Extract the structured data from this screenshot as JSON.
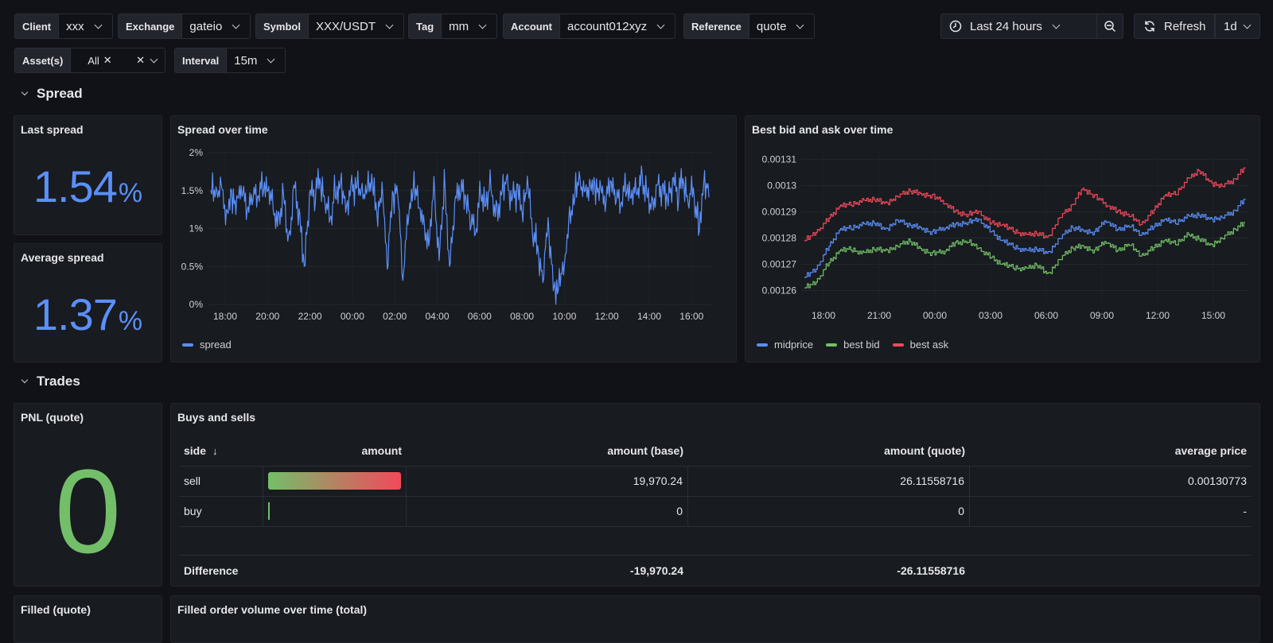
{
  "variables": [
    {
      "label": "Client",
      "value": "xxx"
    },
    {
      "label": "Exchange",
      "value": "gateio"
    },
    {
      "label": "Symbol",
      "value": "XXX/USDT"
    },
    {
      "label": "Tag",
      "value": "mm"
    },
    {
      "label": "Account",
      "value": "account012xyz"
    },
    {
      "label": "Reference",
      "value": "quote"
    }
  ],
  "assets": {
    "label": "Asset(s)",
    "chip": "All"
  },
  "interval": {
    "label": "Interval",
    "value": "15m"
  },
  "time_picker": {
    "label": "Last 24 hours"
  },
  "refresh": {
    "label": "Refresh",
    "interval": "1d"
  },
  "sections": {
    "spread": "Spread",
    "trades": "Trades"
  },
  "panels": {
    "last_spread": {
      "title": "Last spread",
      "value": "1.54",
      "unit": "%"
    },
    "avg_spread": {
      "title": "Average spread",
      "value": "1.37",
      "unit": "%"
    },
    "spread_chart": {
      "title": "Spread over time",
      "legend": "spread"
    },
    "bidask_chart": {
      "title": "Best bid and ask over time",
      "legend": [
        "midprice",
        "best bid",
        "best ask"
      ]
    },
    "pnl": {
      "title": "PNL (quote)",
      "value": "0"
    },
    "buys_sells": {
      "title": "Buys and sells",
      "columns": [
        "side",
        "amount",
        "amount (base)",
        "amount (quote)",
        "average price"
      ],
      "rows": [
        {
          "side": "sell",
          "amount_gauge": 1.0,
          "base": "19,970.24",
          "quote": "26.11558716",
          "avg": "0.00130773"
        },
        {
          "side": "buy",
          "amount_gauge": 0.0,
          "base": "0",
          "quote": "0",
          "avg": "-"
        }
      ],
      "footer": {
        "label": "Difference",
        "base": "-19,970.24",
        "quote": "-26.11558716"
      }
    },
    "filled_quote": {
      "title": "Filled (quote)"
    },
    "filled_volume": {
      "title": "Filled order volume over time (total)"
    }
  },
  "colors": {
    "blue": "#5b8ff9",
    "green": "#73bf69",
    "red": "#f2495c",
    "bg": "#111217",
    "panel": "#181b1f"
  },
  "chart_data": [
    {
      "type": "line",
      "title": "Spread over time",
      "x_ticks": [
        "18:00",
        "20:00",
        "22:00",
        "00:00",
        "02:00",
        "04:00",
        "06:00",
        "08:00",
        "10:00",
        "12:00",
        "14:00",
        "16:00"
      ],
      "y_ticks": [
        "0%",
        "0.5%",
        "1%",
        "1.5%",
        "2%"
      ],
      "ylim": [
        0,
        2
      ],
      "series": [
        {
          "name": "spread",
          "color": "#5b8ff9",
          "values": [
            1.5,
            1.4,
            1.6,
            1.1,
            1.5,
            1.3,
            1.6,
            1.2,
            1.5,
            1.4,
            1.6,
            1.5,
            1.3,
            1.0,
            1.5,
            0.7,
            1.6,
            1.2,
            0.5,
            1.4,
            1.5,
            1.6,
            1.4,
            1.1,
            1.5,
            1.6,
            1.3,
            1.5,
            1.6,
            1.4,
            1.5,
            1.6,
            1.2,
            1.5,
            0.6,
            1.4,
            1.6,
            0.3,
            1.2,
            1.5,
            1.4,
            1.0,
            0.8,
            1.5,
            0.6,
            1.6,
            0.5,
            1.3,
            1.6,
            1.4,
            1.2,
            0.9,
            1.5,
            1.3,
            1.6,
            1.1,
            1.5,
            1.6,
            1.4,
            1.5,
            1.2,
            1.6,
            1.0,
            0.7,
            0.4,
            1.1,
            0.3,
            0.2,
            0.5,
            1.0,
            1.4,
            1.6,
            1.5,
            1.5,
            1.6,
            1.5,
            1.4,
            1.6,
            1.5,
            1.3,
            1.6,
            1.4,
            1.5,
            1.6,
            1.5,
            1.2,
            1.6,
            1.5,
            1.4,
            1.6,
            1.5,
            1.6,
            1.4,
            1.5,
            1.0,
            1.6,
            1.5
          ]
        }
      ]
    },
    {
      "type": "line",
      "title": "Best bid and ask over time",
      "x_ticks": [
        "18:00",
        "21:00",
        "00:00",
        "03:00",
        "06:00",
        "09:00",
        "12:00",
        "15:00"
      ],
      "y_ticks": [
        "0.00126",
        "0.00127",
        "0.00128",
        "0.00129",
        "0.0013",
        "0.00131"
      ],
      "ylim": [
        0.001255,
        0.001312
      ],
      "series": [
        {
          "name": "midprice",
          "color": "#5b8ff9",
          "values": [
            0.001265,
            0.001268,
            0.001276,
            0.001283,
            0.001284,
            0.001285,
            0.001286,
            0.001283,
            0.001287,
            0.001285,
            0.001284,
            0.001282,
            0.001284,
            0.001285,
            0.001286,
            0.001287,
            0.001283,
            0.001279,
            0.001277,
            0.001275,
            0.001276,
            0.001274,
            0.00128,
            0.001284,
            0.001283,
            0.001282,
            0.001287,
            0.001283,
            0.001285,
            0.001281,
            0.001284,
            0.001287,
            0.001286,
            0.001288,
            0.001289,
            0.001287,
            0.001288,
            0.00129,
            0.001295
          ]
        },
        {
          "name": "best bid",
          "color": "#73bf69",
          "values": [
            0.001261,
            0.001263,
            0.00127,
            0.001275,
            0.001276,
            0.001274,
            0.001276,
            0.001275,
            0.001277,
            0.001279,
            0.001276,
            0.001274,
            0.001275,
            0.001278,
            0.001279,
            0.001276,
            0.001273,
            0.00127,
            0.001269,
            0.001268,
            0.00127,
            0.001266,
            0.001272,
            0.001276,
            0.001277,
            0.001275,
            0.001279,
            0.001275,
            0.001278,
            0.001273,
            0.001276,
            0.001279,
            0.001278,
            0.001281,
            0.00128,
            0.001277,
            0.00128,
            0.001283,
            0.001286
          ]
        },
        {
          "name": "best ask",
          "color": "#f2495c",
          "values": [
            0.001279,
            0.001282,
            0.001287,
            0.001292,
            0.001293,
            0.001294,
            0.001295,
            0.001293,
            0.001296,
            0.001298,
            0.001297,
            0.001296,
            0.001294,
            0.00129,
            0.001289,
            0.00129,
            0.001286,
            0.001285,
            0.001283,
            0.001281,
            0.001282,
            0.00128,
            0.001288,
            0.001292,
            0.001299,
            0.001296,
            0.001293,
            0.00129,
            0.001289,
            0.001285,
            0.00129,
            0.001296,
            0.001297,
            0.001302,
            0.001306,
            0.001301,
            0.0013,
            0.001302,
            0.001307
          ]
        }
      ]
    }
  ]
}
